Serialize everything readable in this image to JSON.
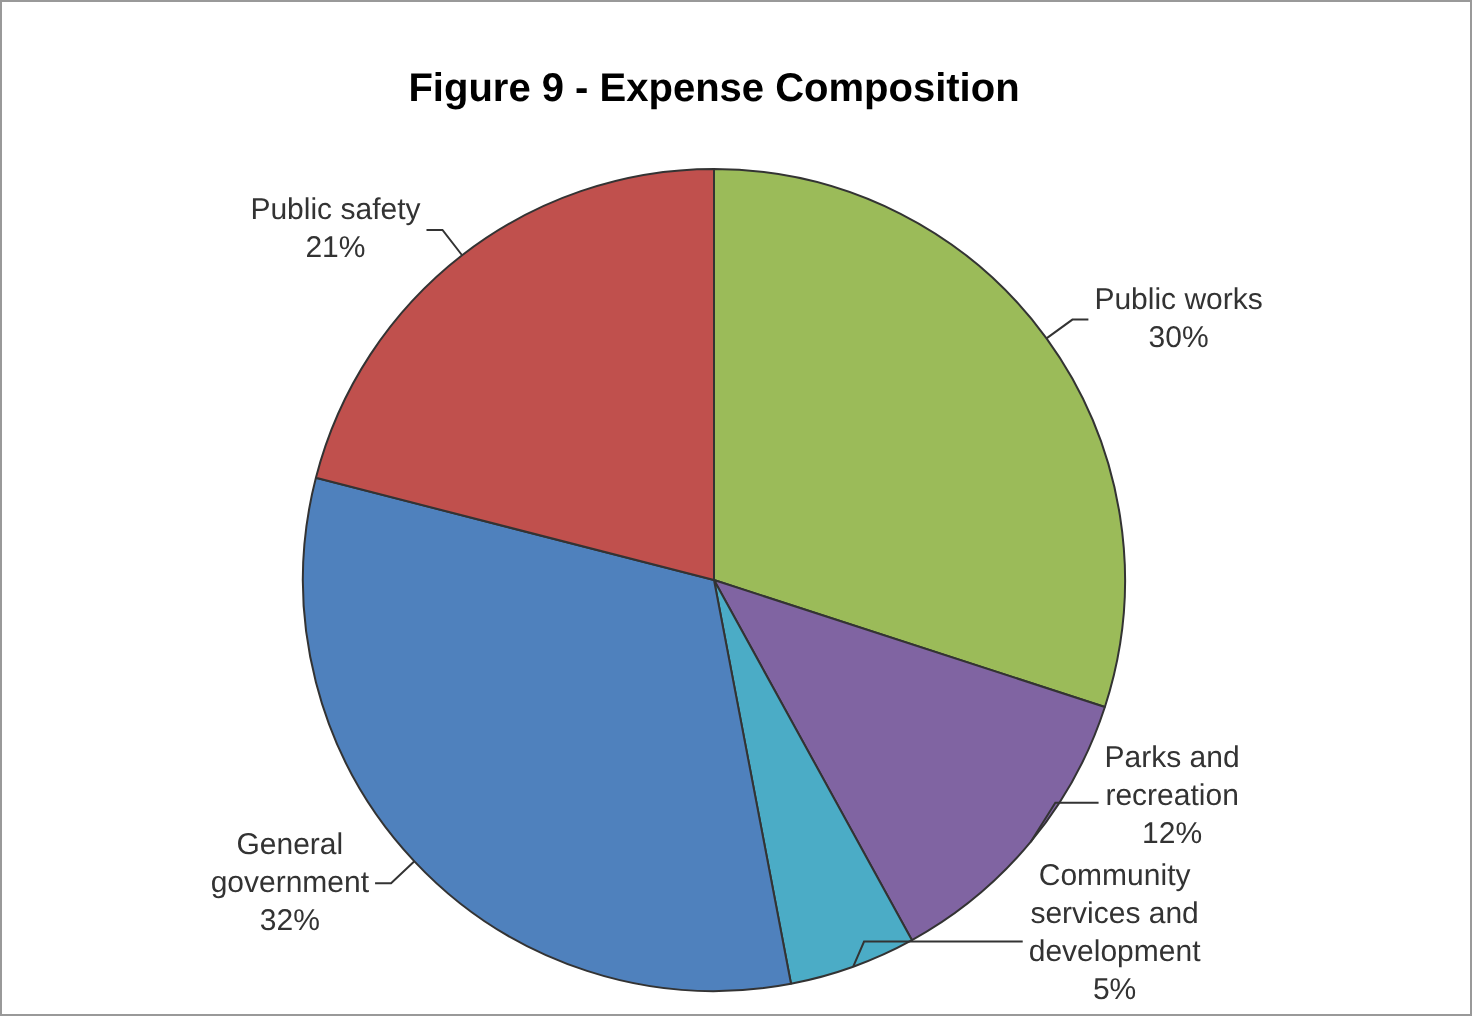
{
  "chart_data": {
    "type": "pie",
    "title": "Figure 9 - Expense Composition",
    "categories": [
      "Public works",
      "Parks and recreation",
      "Community services and development",
      "General government",
      "Public safety"
    ],
    "values": [
      30,
      12,
      5,
      32,
      21
    ],
    "value_labels": [
      "30%",
      "12%",
      "5%",
      "32%",
      "21%"
    ],
    "colors": [
      "#9bbb59",
      "#8064a2",
      "#4bacc6",
      "#4f81bd",
      "#c0504d"
    ],
    "legend": false
  }
}
